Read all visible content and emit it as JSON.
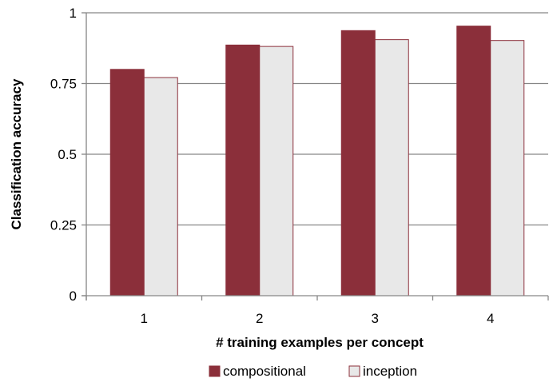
{
  "chart_data": {
    "type": "bar",
    "title": "",
    "xlabel": "# training examples per concept",
    "ylabel": "Classification accuracy",
    "categories": [
      "1",
      "2",
      "3",
      "4"
    ],
    "series": [
      {
        "name": "compositional",
        "values": [
          0.8,
          0.886,
          0.937,
          0.953
        ],
        "color": "#8B2F3A"
      },
      {
        "name": "inception",
        "values": [
          0.771,
          0.881,
          0.905,
          0.902
        ],
        "color": "#E8E8E8"
      }
    ],
    "ylim": [
      0,
      1
    ],
    "yticks": [
      0,
      0.25,
      0.5,
      0.75,
      1
    ],
    "ytick_labels": [
      "0",
      "0.25",
      "0.5",
      "0.75",
      "1"
    ],
    "grid": true,
    "legend_position": "bottom",
    "colors": {
      "grid": "#868686",
      "axis": "#868686",
      "bar_stroke": "#8B2F3A"
    }
  }
}
